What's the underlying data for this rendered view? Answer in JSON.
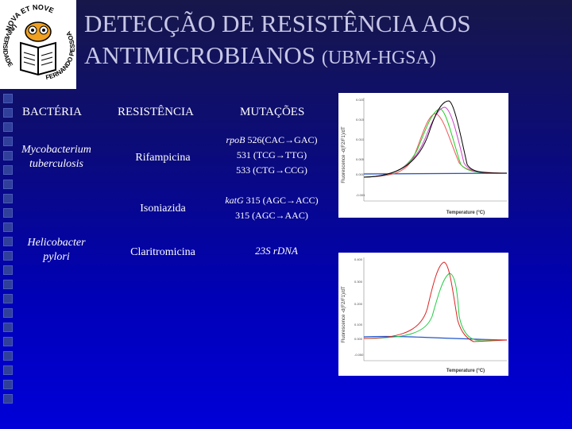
{
  "logo": {
    "top_text": "NOVA ET NOVE",
    "left_text": "UNIVERSIDADE",
    "right_text": "FERNANDO PESSOA"
  },
  "title": {
    "line1": "DETECÇÃO DE RESISTÊNCIA AOS",
    "line2_main": "ANTIMICROBIANOS",
    "line2_small": "(UBM-HGSA)"
  },
  "table": {
    "headers": {
      "bacteria": "BACTÉRIA",
      "resistance": "RESISTÊNCIA",
      "mutations": "MUTAÇÕES"
    },
    "rows": [
      {
        "bacteria_line1": "Mycobacterium",
        "bacteria_line2": "tuberculosis",
        "drug": "Rifampicina",
        "gene": "rpoB",
        "mut1": "526(CAC→GAC)",
        "mut2": "531 (TCG→TTG)",
        "mut3": "533 (CTG→CCG)"
      },
      {
        "drug": "Isoniazida",
        "gene": "katG",
        "mut1": "315 (AGC→ACC)",
        "mut2": "315 (AGC→AAC)"
      },
      {
        "bacteria_line1": "Helicobacter",
        "bacteria_line2": "pylori",
        "drug": "Claritromicina",
        "mutation": "23S rDNA"
      }
    ]
  },
  "graph_top": {
    "ylabel": "Fluorescence -d(F2/F1)/dT",
    "xlabel": "Temperature (°C)",
    "yticks": [
      "0.020",
      "0.015",
      "0.010",
      "0.005",
      "0.000",
      "-0.005"
    ],
    "colors": {
      "black": "#000000",
      "magenta": "#cc44cc",
      "green": "#22cc22",
      "red": "#ee5555",
      "blue": "#2255cc"
    }
  },
  "graph_bottom": {
    "ylabel": "Fluorescence -d(F2/F1)/dT",
    "xlabel": "Temperature (°C)",
    "yticks": [
      "0.400",
      "0.300",
      "0.200",
      "0.100",
      "0.000",
      "-0.050"
    ],
    "colors": {
      "red": "#dd2222",
      "green": "#22cc44",
      "blue": "#2255cc"
    }
  }
}
